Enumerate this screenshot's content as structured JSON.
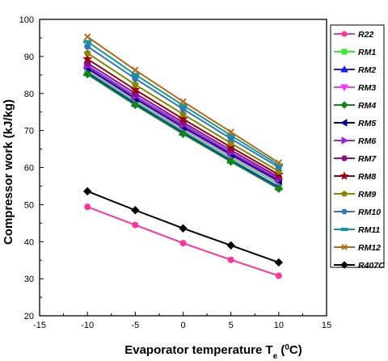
{
  "chart_data": {
    "type": "line",
    "xlabel_main": "Evaporator temperature T",
    "xlabel_sub": "e",
    "xlabel_open": " (",
    "xlabel_sup": "0",
    "xlabel_unit": "C)",
    "ylabel": "Compressor work (kJ/kg)",
    "xlim": [
      -15,
      15
    ],
    "ylim": [
      20,
      100
    ],
    "xticks": [
      -15,
      -10,
      -5,
      0,
      5,
      10,
      15
    ],
    "yticks": [
      20,
      30,
      40,
      50,
      60,
      70,
      80,
      90,
      100
    ],
    "grid": false,
    "legend_position": "right",
    "x": [
      -10,
      -5,
      0,
      5,
      10
    ],
    "series": [
      {
        "name": "R22",
        "color": "#ff3399",
        "marker": "circle",
        "values": [
          49.4,
          44.5,
          39.6,
          35.1,
          30.8
        ]
      },
      {
        "name": "RM1",
        "color": "#33ee33",
        "marker": "square",
        "values": [
          86.0,
          77.8,
          70.0,
          62.6,
          55.5
        ]
      },
      {
        "name": "RM2",
        "color": "#1a1aff",
        "marker": "triangle-up",
        "values": [
          85.6,
          77.3,
          69.5,
          62.0,
          54.8
        ]
      },
      {
        "name": "RM3",
        "color": "#ff33ff",
        "marker": "triangle-down",
        "values": [
          86.6,
          78.4,
          70.6,
          63.2,
          56.1
        ]
      },
      {
        "name": "RM4",
        "color": "#118811",
        "marker": "diamond",
        "values": [
          85.2,
          76.9,
          69.1,
          61.6,
          54.3
        ]
      },
      {
        "name": "RM5",
        "color": "#000088",
        "marker": "triangle-left",
        "values": [
          86.9,
          78.7,
          71.0,
          63.6,
          56.4
        ]
      },
      {
        "name": "RM6",
        "color": "#9922dd",
        "marker": "triangle-right",
        "values": [
          87.5,
          79.3,
          71.6,
          64.1,
          56.9
        ]
      },
      {
        "name": "RM7",
        "color": "#881188",
        "marker": "hexagon",
        "values": [
          88.2,
          80.0,
          72.2,
          64.7,
          57.4
        ]
      },
      {
        "name": "RM8",
        "color": "#990011",
        "marker": "star",
        "values": [
          89.3,
          81.0,
          73.1,
          65.5,
          58.1
        ]
      },
      {
        "name": "RM9",
        "color": "#888800",
        "marker": "pentagon",
        "values": [
          90.9,
          82.4,
          74.4,
          66.6,
          59.0
        ]
      },
      {
        "name": "RM10",
        "color": "#3377bb",
        "marker": "circle",
        "values": [
          92.7,
          84.0,
          75.8,
          67.8,
          60.1
        ]
      },
      {
        "name": "RM11",
        "color": "#119999",
        "marker": "dash",
        "values": [
          94.0,
          85.1,
          76.8,
          68.7,
          60.7
        ]
      },
      {
        "name": "RM12",
        "color": "#bb6611",
        "marker": "x",
        "values": [
          95.3,
          86.3,
          77.8,
          69.6,
          61.3
        ]
      },
      {
        "name": "R407C",
        "color": "#000000",
        "marker": "diamond",
        "values": [
          53.6,
          48.5,
          43.6,
          39.0,
          34.4
        ]
      }
    ]
  }
}
